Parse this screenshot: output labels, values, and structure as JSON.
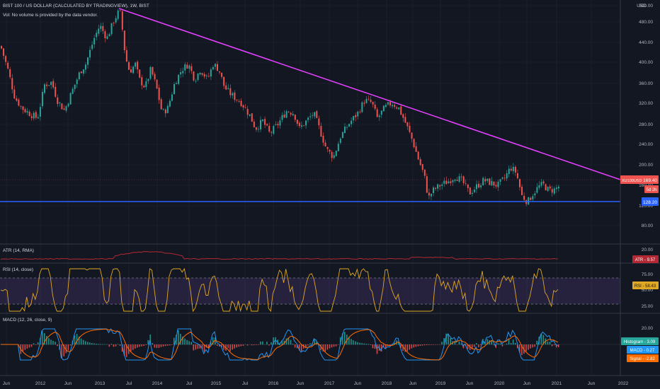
{
  "legend": {
    "title": "BIST 100 / US DOLLAR (CALCULATED BY TRADINGVIEW), 1W, BIST",
    "vol_note": "Vol: No volume is provided by the data vendor."
  },
  "currency": "USD",
  "colors": {
    "background": "#131722",
    "up": "#26a69a",
    "down": "#ef5350",
    "trendline": "#e040fb",
    "support": "#2962ff",
    "atr": "#b22833",
    "rsi": "#e0a823",
    "rsi_band": "#7e57c2",
    "macd": "#2196f3",
    "signal": "#ff6d00"
  },
  "price_axis": {
    "ticks": [
      "500.00",
      "480.00",
      "440.00",
      "400.00",
      "360.00",
      "320.00",
      "280.00",
      "240.00",
      "200.00",
      "160.00",
      "120.00",
      "80.00"
    ],
    "top_label": "USD"
  },
  "badges": {
    "pair": "XU100USD",
    "last_price": "169.40",
    "countdown": "5d 2h",
    "support_level": "128.20"
  },
  "atr": {
    "label": "ATR (14, RMA)",
    "tick": "20.00",
    "badge": "ATR - 9.57"
  },
  "rsi": {
    "label": "RSI (14, close)",
    "ticks": [
      "75.00",
      "50.00",
      "25.00"
    ],
    "badge": "RSI - 58.43"
  },
  "macd": {
    "label": "MACD (12, 26, close, 9)",
    "tick": "20.00",
    "badges": {
      "histogram": "Histogram - 3.09",
      "macd": "MACD - 0.27",
      "signal": "Signal - -2.82"
    }
  },
  "time_axis": [
    "Jun",
    "2012",
    "Jun",
    "2013",
    "Jul",
    "2014",
    "Jul",
    "2015",
    "Jul",
    "2016",
    "Jun",
    "2017",
    "Jun",
    "2018",
    "Jun",
    "2019",
    "Jun",
    "2020",
    "Jun",
    "2021",
    "Jun",
    "2022"
  ],
  "chart_data": {
    "type": "line",
    "title": "BIST 100 / US DOLLAR (CALCULATED BY TRADINGVIEW), 1W, BIST",
    "x": [
      "2011-06",
      "2012-01",
      "2012-06",
      "2013-01",
      "2013-05",
      "2013-07",
      "2014-01",
      "2014-07",
      "2015-01",
      "2015-07",
      "2016-01",
      "2016-07",
      "2017-01",
      "2017-07",
      "2018-01",
      "2018-06",
      "2019-01",
      "2019-07",
      "2020-01",
      "2020-03",
      "2020-06",
      "2020-11"
    ],
    "series": [
      {
        "name": "Close",
        "values": [
          430,
          290,
          360,
          440,
          500,
          420,
          300,
          380,
          320,
          285,
          250,
          290,
          220,
          300,
          310,
          200,
          150,
          160,
          195,
          128,
          150,
          169.4
        ]
      }
    ],
    "ylim": [
      60,
      510
    ],
    "last_price": 169.4,
    "support_level": 128.2,
    "trendline": {
      "from": [
        "2013-05",
        500
      ],
      "to": [
        "2021-01",
        180
      ]
    }
  },
  "indicators": {
    "atr_value": 9.57,
    "rsi_value": 58.43,
    "rsi_bands": [
      70,
      30
    ],
    "macd_histogram": 3.09,
    "macd": 0.27,
    "macd_signal": -2.82
  }
}
